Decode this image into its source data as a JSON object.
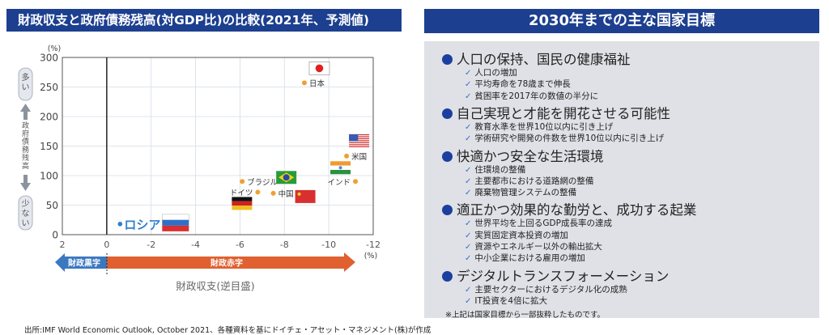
{
  "left_panel": {
    "title": "財政収支と政府債務残高(対GDP比)の比較(2021年、予測値)",
    "y_side": {
      "top_pill": "多い",
      "label": "政府債務残高",
      "bottom_pill": "少ない"
    },
    "arrow_surplus": "財政黒字",
    "arrow_deficit": "財政赤字",
    "x_caption": "財政収支(逆目盛)"
  },
  "chart_data": {
    "type": "scatter",
    "title": "財政収支と政府債務残高(対GDP比)の比較(2021年、予測値)",
    "xlabel": "財政収支(逆目盛)",
    "ylabel": "政府債務残高",
    "x_unit": "(%)",
    "y_unit": "(%)",
    "xlim": [
      2,
      -12
    ],
    "ylim": [
      0,
      300
    ],
    "x_reversed": true,
    "grid": true,
    "x_ticks": [
      "2",
      "0",
      "-2",
      "-4",
      "-6",
      "-8",
      "-10",
      "-12"
    ],
    "x_tick_values": [
      2,
      0,
      -2,
      -4,
      -6,
      -8,
      -10,
      -12
    ],
    "y_ticks": [
      "0",
      "50",
      "100",
      "150",
      "200",
      "250",
      "300"
    ],
    "y_tick_values": [
      0,
      50,
      100,
      150,
      200,
      250,
      300
    ],
    "points": [
      {
        "label": "日本",
        "x": -8.9,
        "y": 257,
        "flag": "japan"
      },
      {
        "label": "米国",
        "x": -10.8,
        "y": 133,
        "flag": "usa"
      },
      {
        "label": "インド",
        "x": -11.2,
        "y": 90,
        "flag": "india"
      },
      {
        "label": "ブラジル",
        "x": -6.1,
        "y": 90,
        "flag": "brazil"
      },
      {
        "label": "ドイツ",
        "x": -6.8,
        "y": 72,
        "flag": "germany"
      },
      {
        "label": "中国",
        "x": -7.5,
        "y": 70,
        "flag": "china"
      },
      {
        "label": "ロシア",
        "x": -0.6,
        "y": 18,
        "flag": "russia"
      }
    ],
    "colors": {
      "point": "#f0a030",
      "russia_label": "#2f7fd0",
      "surplus": "#3a78c0",
      "deficit": "#e0602f"
    }
  },
  "right_panel": {
    "title": "2030年までの主な国家目標",
    "goals": [
      {
        "heading": "人口の保持、国民の健康福祉",
        "items": [
          "人口の増加",
          "平均寿命を78歳まで伸長",
          "貧困率を2017年の数値の半分に"
        ]
      },
      {
        "heading": "自己実現と才能を開花させる可能性",
        "items": [
          "教育水準を世界10位以内に引き上げ",
          "学術研究や開発の件数を世界10位以内に引き上げ"
        ]
      },
      {
        "heading": "快適かつ安全な生活環境",
        "items": [
          "住環境の整備",
          "主要都市における道路網の整備",
          "廃棄物管理システムの整備"
        ]
      },
      {
        "heading": "適正かつ効果的な勤労と、成功する起業",
        "items": [
          "世界平均を上回るGDP成長率の達成",
          "実質固定資本投資の増加",
          "資源やエネルギー以外の輸出拡大",
          "中小企業における雇用の増加"
        ]
      },
      {
        "heading": "デジタルトランスフォーメーション",
        "items": [
          "主要セクターにおけるデジタル化の成熟",
          "IT投資を4倍に拡大"
        ]
      }
    ],
    "note": "※上記は国家目標から一部抜粋したものです。"
  },
  "source": "出所:IMF World Economic Outlook, October 2021、各種資料を基にドイチェ・アセット・マネジメント(株)が作成"
}
